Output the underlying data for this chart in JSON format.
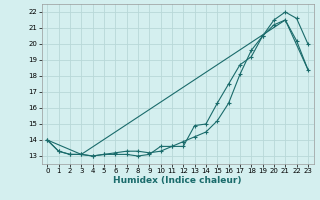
{
  "xlabel": "Humidex (Indice chaleur)",
  "bg_color": "#d4efef",
  "grid_color": "#b8d8d8",
  "line_color": "#1a6b6b",
  "xlim": [
    -0.5,
    23.5
  ],
  "ylim": [
    12.5,
    22.5
  ],
  "xticks": [
    0,
    1,
    2,
    3,
    4,
    5,
    6,
    7,
    8,
    9,
    10,
    11,
    12,
    13,
    14,
    15,
    16,
    17,
    18,
    19,
    20,
    21,
    22,
    23
  ],
  "yticks": [
    13,
    14,
    15,
    16,
    17,
    18,
    19,
    20,
    21,
    22
  ],
  "line1_x": [
    0,
    1,
    2,
    3,
    4,
    5,
    6,
    7,
    8,
    9,
    10,
    11,
    12,
    13,
    14,
    15,
    16,
    17,
    18,
    19,
    20,
    21,
    22,
    23
  ],
  "line1_y": [
    14.0,
    13.3,
    13.1,
    13.1,
    13.0,
    13.1,
    13.1,
    13.1,
    13.0,
    13.1,
    13.6,
    13.6,
    13.6,
    14.9,
    15.0,
    16.3,
    17.5,
    18.7,
    19.2,
    20.5,
    21.2,
    21.5,
    20.2,
    18.4
  ],
  "line2_x": [
    0,
    1,
    2,
    3,
    4,
    5,
    6,
    7,
    8,
    9,
    10,
    11,
    12,
    13,
    14,
    15,
    16,
    17,
    18,
    19,
    20,
    21,
    22,
    23
  ],
  "line2_y": [
    14.0,
    13.3,
    13.1,
    13.1,
    13.0,
    13.1,
    13.2,
    13.3,
    13.3,
    13.2,
    13.3,
    13.6,
    13.9,
    14.2,
    14.5,
    15.2,
    16.3,
    18.1,
    19.6,
    20.5,
    21.5,
    22.0,
    21.6,
    20.0
  ],
  "line3_x": [
    0,
    3,
    21,
    23
  ],
  "line3_y": [
    14.0,
    13.1,
    21.5,
    18.4
  ]
}
